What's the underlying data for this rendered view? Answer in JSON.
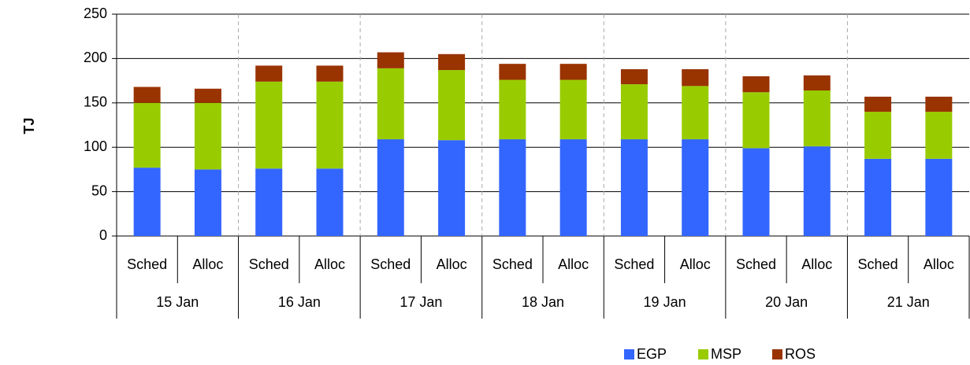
{
  "chart_data": {
    "type": "stacked-bar",
    "y_label": "TJ",
    "categories": [
      "Sched",
      "Alloc",
      "Sched",
      "Alloc",
      "Sched",
      "Alloc",
      "Sched",
      "Alloc",
      "Sched",
      "Alloc",
      "Sched",
      "Alloc",
      "Sched",
      "Alloc"
    ],
    "groups": [
      "15 Jan",
      "16 Jan",
      "17 Jan",
      "18 Jan",
      "19 Jan",
      "20 Jan",
      "21 Jan"
    ],
    "series": [
      {
        "name": "EGP",
        "color": "#3366ff",
        "values": [
          77,
          75,
          76,
          76,
          109,
          108,
          109,
          109,
          109,
          109,
          99,
          101,
          87,
          87
        ]
      },
      {
        "name": "MSP",
        "color": "#99cc00",
        "values": [
          73,
          75,
          98,
          98,
          80,
          79,
          67,
          67,
          62,
          60,
          63,
          63,
          53,
          53
        ]
      },
      {
        "name": "ROS",
        "color": "#993300",
        "values": [
          18,
          16,
          18,
          18,
          18,
          18,
          18,
          18,
          17,
          19,
          18,
          17,
          17,
          17
        ]
      }
    ],
    "ylim": [
      0,
      250
    ],
    "yticks": [
      0,
      50,
      100,
      150,
      200,
      250
    ],
    "grid": true
  }
}
